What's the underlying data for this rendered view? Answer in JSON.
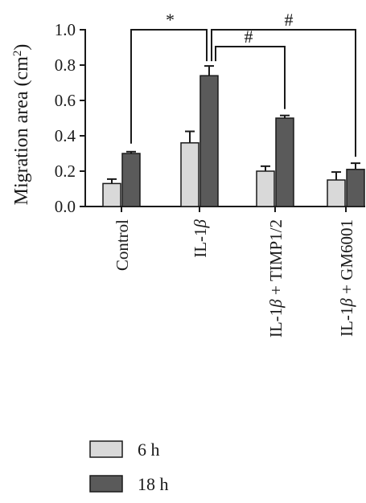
{
  "chart_data": {
    "type": "bar",
    "ylabel": "Migration area (cm",
    "ylabel_superscript": "2",
    "ylabel_close": ")",
    "ylim": [
      0,
      1.0
    ],
    "yticks": [
      "0.0",
      "0.2",
      "0.4",
      "0.6",
      "0.8",
      "1.0"
    ],
    "categories": [
      "Control",
      "IL-1",
      "IL-1 + TIMP1/2",
      "IL-1 + GM6001"
    ],
    "category_beta": [
      false,
      true,
      true,
      true
    ],
    "category_prefix": [
      "Control",
      "IL-1",
      "IL-1",
      "IL-1"
    ],
    "category_suffix": [
      "",
      "",
      " + TIMP1/2",
      " + GM6001"
    ],
    "beta_symbol": "β",
    "series": [
      {
        "name": "6 h",
        "values": [
          0.13,
          0.36,
          0.2,
          0.15
        ],
        "errors": [
          0.025,
          0.065,
          0.028,
          0.045
        ],
        "color": "#d9d9d9"
      },
      {
        "name": "18 h",
        "values": [
          0.3,
          0.74,
          0.5,
          0.21
        ],
        "errors": [
          0.01,
          0.055,
          0.015,
          0.035
        ],
        "color": "#5a5a5a"
      }
    ],
    "significance": [
      {
        "label": "*"
      },
      {
        "label": "#"
      },
      {
        "label": "#"
      }
    ],
    "legend": [
      "6 h",
      "18 h"
    ],
    "grid": false,
    "legend_position": "bottom-left"
  }
}
